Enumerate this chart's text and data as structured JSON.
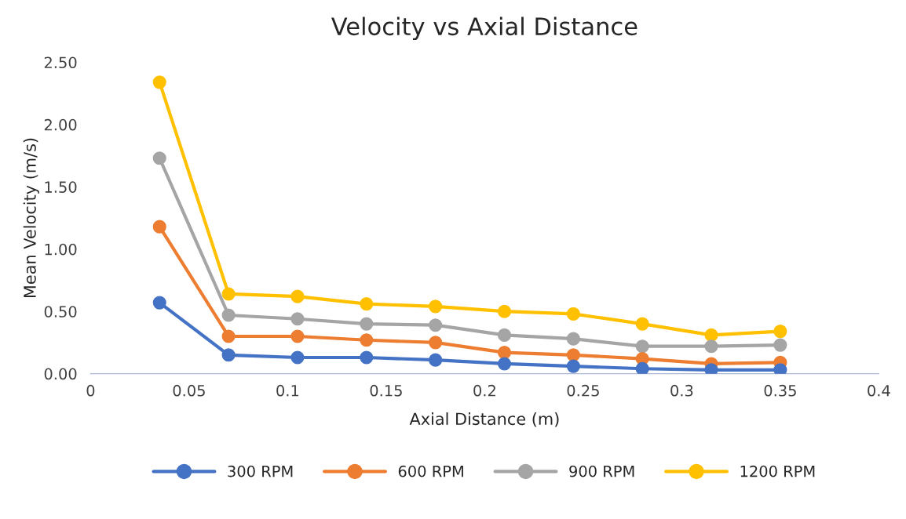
{
  "chart_data": {
    "type": "line",
    "title": "Velocity vs Axial Distance",
    "xlabel": "Axial Distance (m)",
    "ylabel": "Mean Velocity (m/s)",
    "x": [
      0.035,
      0.07,
      0.105,
      0.14,
      0.175,
      0.21,
      0.245,
      0.28,
      0.315,
      0.35
    ],
    "series": [
      {
        "name": "300 RPM",
        "color": "#4472c4",
        "values": [
          0.57,
          0.15,
          0.13,
          0.13,
          0.11,
          0.08,
          0.06,
          0.04,
          0.03,
          0.03
        ]
      },
      {
        "name": "600 RPM",
        "color": "#ed7d31",
        "values": [
          1.18,
          0.3,
          0.3,
          0.27,
          0.25,
          0.17,
          0.15,
          0.12,
          0.08,
          0.09
        ]
      },
      {
        "name": "900 RPM",
        "color": "#a5a5a5",
        "values": [
          1.73,
          0.47,
          0.44,
          0.4,
          0.39,
          0.31,
          0.28,
          0.22,
          0.22,
          0.23
        ]
      },
      {
        "name": "1200 RPM",
        "color": "#ffc000",
        "values": [
          2.34,
          0.64,
          0.62,
          0.56,
          0.54,
          0.5,
          0.48,
          0.4,
          0.31,
          0.34
        ]
      }
    ],
    "xlim": [
      0,
      0.4
    ],
    "xticks": [
      0,
      0.05,
      0.1,
      0.15,
      0.2,
      0.25,
      0.3,
      0.35,
      0.4
    ],
    "ylim": [
      0,
      2.5
    ],
    "yticks": [
      {
        "value": 0,
        "label": "0.00"
      },
      {
        "value": 0.5,
        "label": "0.50"
      },
      {
        "value": 1,
        "label": "1.00"
      },
      {
        "value": 1.5,
        "label": "1.50"
      },
      {
        "value": 2,
        "label": "2.00"
      },
      {
        "value": 2.5,
        "label": "2.50"
      }
    ],
    "marker": "circle",
    "line_style": "solid",
    "legend": "bottom",
    "grid": false
  }
}
